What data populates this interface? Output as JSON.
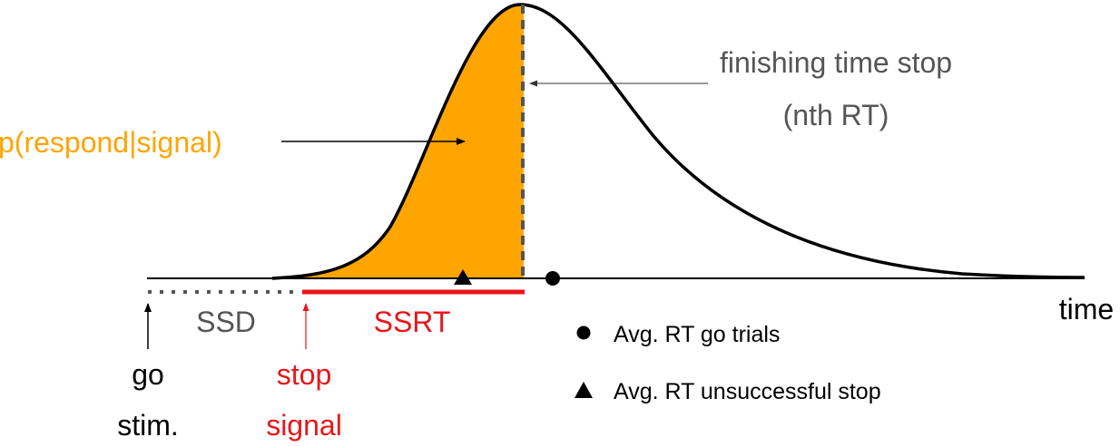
{
  "labels": {
    "p_respond": "p(respond|signal)",
    "finishing_line1": "finishing time stop",
    "finishing_line2": "(nth RT)",
    "ssd": "SSD",
    "ssrt": "SSRT",
    "time": "time",
    "go_line1": "go",
    "go_line2": "stim.",
    "stop_line1": "stop",
    "stop_line2": "signal"
  },
  "legend": {
    "go_trials": "Avg. RT go trials",
    "unsuccessful_stop": "Avg. RT unsuccessful stop"
  },
  "colors": {
    "orange": "#FFA500",
    "red": "#E8161B",
    "gray": "#555555",
    "black": "#000000"
  }
}
